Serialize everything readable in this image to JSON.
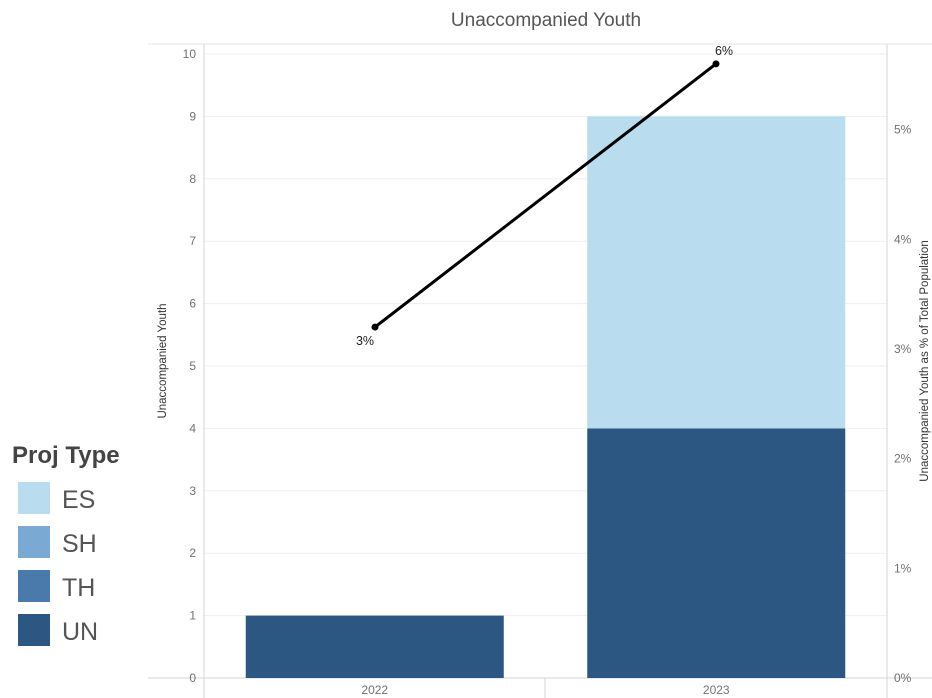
{
  "chart_data": {
    "type": "bar",
    "title": "Unaccompanied Youth",
    "categories": [
      "2022",
      "2023"
    ],
    "ylabel": "Unaccompanied Youth",
    "ylim": [
      0,
      10
    ],
    "yticks": [
      "0",
      "1",
      "2",
      "3",
      "4",
      "5",
      "6",
      "7",
      "8",
      "9",
      "10"
    ],
    "y2label": "Unaccompanied Youth as % of Total Population",
    "y2lim": [
      0,
      6
    ],
    "y2ticks": [
      "0%",
      "1%",
      "2%",
      "3%",
      "4%",
      "5%"
    ],
    "stacked": true,
    "series": [
      {
        "name": "UN",
        "color": "#2c5782",
        "values": [
          1,
          4
        ]
      },
      {
        "name": "TH",
        "color": "#4a7aab",
        "values": [
          0,
          0
        ]
      },
      {
        "name": "SH",
        "color": "#7aaad3",
        "values": [
          0,
          0
        ]
      },
      {
        "name": "ES",
        "color": "#b9dcef",
        "values": [
          0,
          5
        ]
      }
    ],
    "line_series": {
      "axis": "secondary",
      "color": "#000000",
      "values": [
        3.2,
        5.6
      ],
      "labels": [
        "3%",
        "6%"
      ]
    },
    "legend": {
      "title": "Proj Type",
      "position": "left",
      "items": [
        {
          "label": "ES",
          "color": "#b9dcef"
        },
        {
          "label": "SH",
          "color": "#7aaad3"
        },
        {
          "label": "TH",
          "color": "#4a7aab"
        },
        {
          "label": "UN",
          "color": "#2c5782"
        }
      ]
    },
    "grid": true
  }
}
